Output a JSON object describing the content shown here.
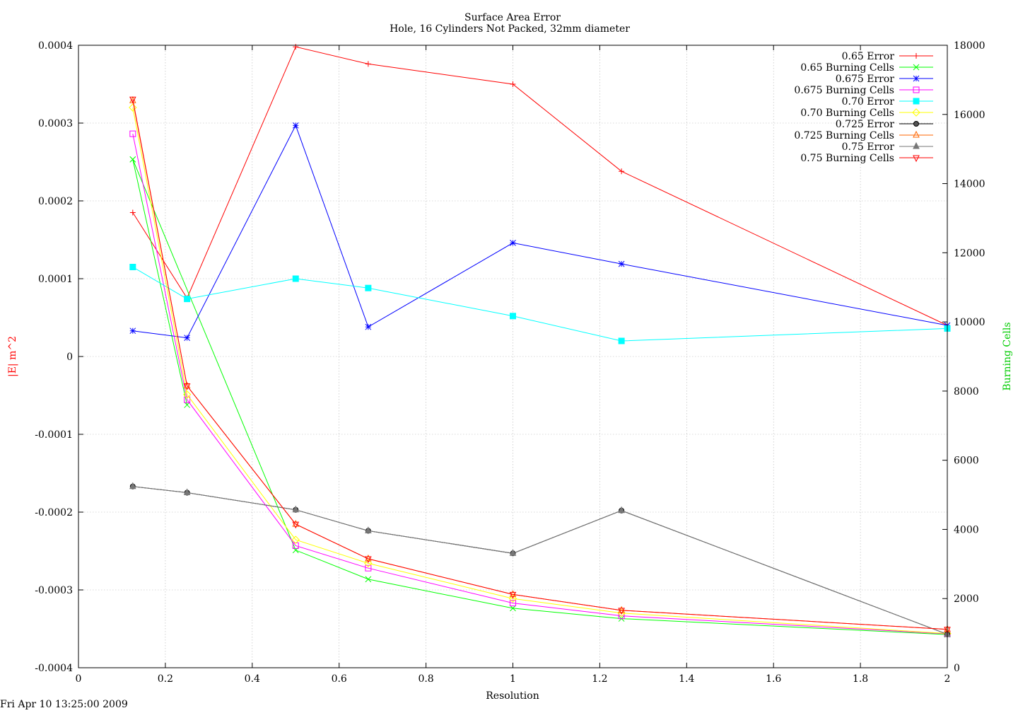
{
  "stamp": "Fri Apr 10 13:25:00 2009",
  "chart_data": {
    "type": "line",
    "title": "Surface Area Error",
    "subtitle": "Hole, 16 Cylinders Not Packed, 32mm diameter",
    "xlabel": "Resolution",
    "ylabel": "|E| m^2",
    "y2label": "Burning Cells",
    "xlim": [
      0,
      2
    ],
    "ylim": [
      -0.0004,
      0.0004
    ],
    "y2lim": [
      0,
      18000
    ],
    "xticks": [
      "0",
      "0.2",
      "0.4",
      "0.6",
      "0.8",
      "1",
      "1.2",
      "1.4",
      "1.6",
      "1.8",
      "2"
    ],
    "yticks": [
      "-0.0004",
      "-0.0003",
      "-0.0002",
      "-0.0001",
      "0",
      "0.0001",
      "0.0002",
      "0.0003",
      "0.0004"
    ],
    "y2ticks": [
      "0",
      "2000",
      "4000",
      "6000",
      "8000",
      "10000",
      "12000",
      "14000",
      "16000",
      "18000"
    ],
    "grid": true,
    "legend_position": "top-right",
    "x": [
      0.125,
      0.25,
      0.5,
      0.667,
      1,
      1.25,
      2
    ],
    "series": [
      {
        "name": "0.65 Error",
        "axis": "y1",
        "color": "#ff0000",
        "marker": "plus",
        "x": [
          0.125,
          0.25,
          0.5,
          0.667,
          1,
          1.25,
          2
        ],
        "values": [
          0.000185,
          7.5e-05,
          0.000398,
          0.000376,
          0.00035,
          0.000238,
          4e-05
        ]
      },
      {
        "name": "0.65 Burning Cells",
        "axis": "y2",
        "color": "#00ff00",
        "marker": "cross",
        "x": [
          0.125,
          0.25,
          0.125,
          0.5,
          0.667,
          1,
          1.25,
          2
        ],
        "values": [
          14700,
          7600,
          14700,
          3400,
          2560,
          1720,
          1420,
          960
        ]
      },
      {
        "name": "0.675 Error",
        "axis": "y1",
        "color": "#0000ff",
        "marker": "star",
        "x": [
          0.125,
          0.25,
          0.5,
          0.667,
          1,
          1.25,
          2
        ],
        "values": [
          3.3e-05,
          2.4e-05,
          0.000297,
          3.8e-05,
          0.000146,
          0.000119,
          4e-05
        ]
      },
      {
        "name": "0.675 Burning Cells",
        "axis": "y2",
        "color": "#ff00ff",
        "marker": "box",
        "x": [
          0.125,
          0.25,
          0.5,
          0.667,
          1,
          1.25,
          2
        ],
        "values": [
          15440,
          7750,
          3530,
          2880,
          1870,
          1500,
          980
        ]
      },
      {
        "name": "0.70 Error",
        "axis": "y1",
        "color": "#00ffff",
        "marker": "filled-box",
        "x": [
          0.125,
          0.25,
          0.5,
          0.667,
          1,
          1.25,
          2
        ],
        "values": [
          0.000115,
          7.4e-05,
          0.0001,
          8.8e-05,
          5.2e-05,
          2e-05,
          3.6e-05
        ]
      },
      {
        "name": "0.70 Burning Cells",
        "axis": "y2",
        "color": "#ffff00",
        "marker": "diamond",
        "x": [
          0.125,
          0.25,
          0.5,
          0.667,
          1,
          1.25,
          2
        ],
        "values": [
          16200,
          7900,
          3700,
          3020,
          2000,
          1580,
          990
        ]
      },
      {
        "name": "0.725 Error",
        "axis": "y1",
        "color": "#000000",
        "marker": "filled-circle",
        "x": [
          0.125,
          0.25,
          0.5,
          0.667,
          1,
          1.25,
          2
        ],
        "values": [
          -0.000167,
          -0.000175,
          -0.000197,
          -0.000224,
          -0.000253,
          -0.000198,
          -0.000357
        ]
      },
      {
        "name": "0.725 Burning Cells",
        "axis": "y2",
        "color": "#ff6600",
        "marker": "triangle",
        "x": [
          0.125,
          0.25,
          0.5,
          0.667,
          1,
          1.25,
          2
        ],
        "values": [
          16400,
          8150,
          4150,
          3150,
          2120,
          1660,
          1110
        ]
      },
      {
        "name": "0.75 Error",
        "axis": "y1",
        "color": "#777777",
        "marker": "filled-triangle",
        "x": [
          0.125,
          0.25,
          0.5,
          0.667,
          1,
          1.25,
          2
        ],
        "values": [
          -0.000167,
          -0.000175,
          -0.000197,
          -0.000224,
          -0.000253,
          -0.000198,
          -0.000357
        ]
      },
      {
        "name": "0.75 Burning Cells",
        "axis": "y2",
        "color": "#ff0000",
        "marker": "inverted-triangle",
        "x": [
          0.125,
          0.25,
          0.5,
          0.667,
          1,
          1.25,
          2
        ],
        "values": [
          16440,
          8150,
          4150,
          3150,
          2120,
          1660,
          1110
        ]
      }
    ]
  }
}
